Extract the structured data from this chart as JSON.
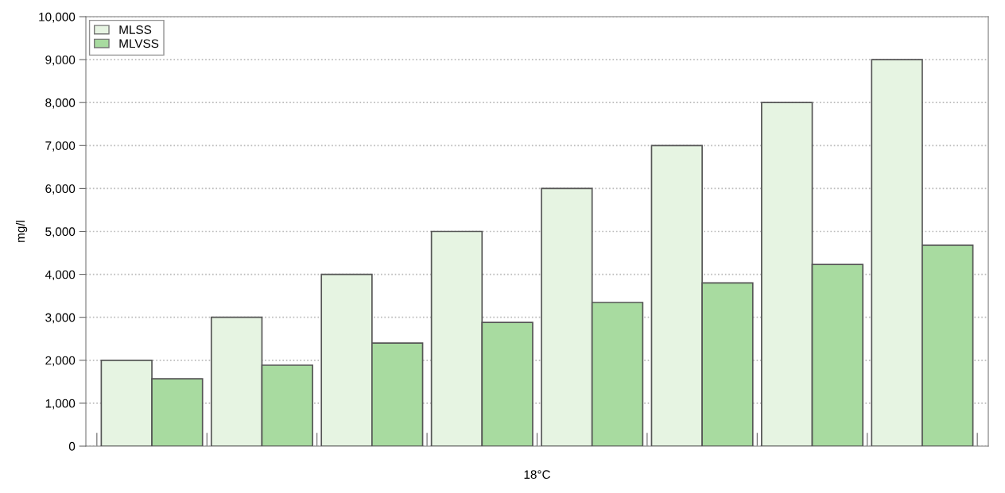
{
  "chart_data": {
    "type": "bar",
    "xlabel": "18°C",
    "ylabel": "mg/l",
    "categories": [
      null,
      null,
      null,
      null,
      null,
      null,
      null,
      null
    ],
    "series": [
      {
        "name": "MLSS",
        "color": "#e6f4e2",
        "values": [
          2000,
          3000,
          4000,
          5000,
          6000,
          7000,
          8000,
          9000
        ]
      },
      {
        "name": "MLVSS",
        "color": "#a8dba0",
        "values": [
          1570,
          1885,
          2400,
          2880,
          3345,
          3800,
          4230,
          4680
        ]
      }
    ],
    "ylim": [
      0,
      10000
    ],
    "yticks": [
      {
        "value": 0,
        "label": "0"
      },
      {
        "value": 1000,
        "label": "1,000"
      },
      {
        "value": 2000,
        "label": "2,000"
      },
      {
        "value": 3000,
        "label": "3,000"
      },
      {
        "value": 4000,
        "label": "4,000"
      },
      {
        "value": 5000,
        "label": "5,000"
      },
      {
        "value": 6000,
        "label": "6,000"
      },
      {
        "value": 7000,
        "label": "7,000"
      },
      {
        "value": 8000,
        "label": "8,000"
      },
      {
        "value": 9000,
        "label": "9,000"
      },
      {
        "value": 10000,
        "label": "10,000"
      }
    ],
    "grid": "y",
    "legend": "top left"
  }
}
